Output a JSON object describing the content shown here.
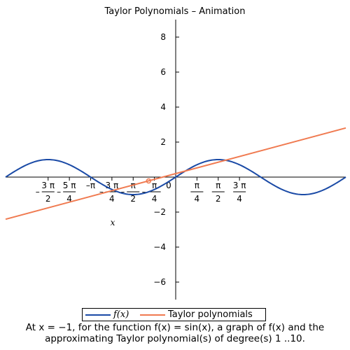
{
  "chart_data": {
    "type": "line",
    "title": "Taylor Polynomials – Animation",
    "xlabel": "x",
    "ylabel": "",
    "xlim": [
      -3.1416,
      3.1416
    ],
    "ylim": [
      -7,
      9
    ],
    "x_ticks": [
      {
        "value": -2.3562,
        "num": "3 π",
        "den": "2",
        "sign": "–"
      },
      {
        "value": -1.9635,
        "num": "5 π",
        "den": "4",
        "sign": "–"
      },
      {
        "value": -1.5708,
        "label": "–π"
      },
      {
        "value": -1.1781,
        "num": "3 π",
        "den": "4",
        "sign": "–"
      },
      {
        "value": -0.7854,
        "num": "π",
        "den": "2",
        "sign": "–"
      },
      {
        "value": -0.3927,
        "num": "π",
        "den": "4",
        "sign": "–"
      },
      {
        "value": 0,
        "label": "0"
      },
      {
        "value": 0.3927,
        "num": "π",
        "den": "4"
      },
      {
        "value": 0.7854,
        "num": "π",
        "den": "2"
      },
      {
        "value": 1.1781,
        "num": "3 π",
        "den": "4"
      }
    ],
    "y_ticks": [
      -6,
      -4,
      -2,
      2,
      4,
      6,
      8
    ],
    "series": [
      {
        "name": "f(x)",
        "color": "#1a4aa6",
        "function": "sin(2x)"
      },
      {
        "name": "Taylor polynomials",
        "color": "#f07a50",
        "slope": 0.83,
        "intercept": 0.2
      }
    ],
    "marker": {
      "x": -0.5,
      "y": -0.22,
      "color": "#f07a50"
    }
  },
  "legend": {
    "series1_label": "f(x)",
    "series2_label": "Taylor polynomials"
  },
  "caption": {
    "line1": "At x = −1, for the function f(x) = sin(x), a graph of f(x) and the",
    "line2": "approximating Taylor polynomial(s) of degree(s) 1 ..10."
  }
}
